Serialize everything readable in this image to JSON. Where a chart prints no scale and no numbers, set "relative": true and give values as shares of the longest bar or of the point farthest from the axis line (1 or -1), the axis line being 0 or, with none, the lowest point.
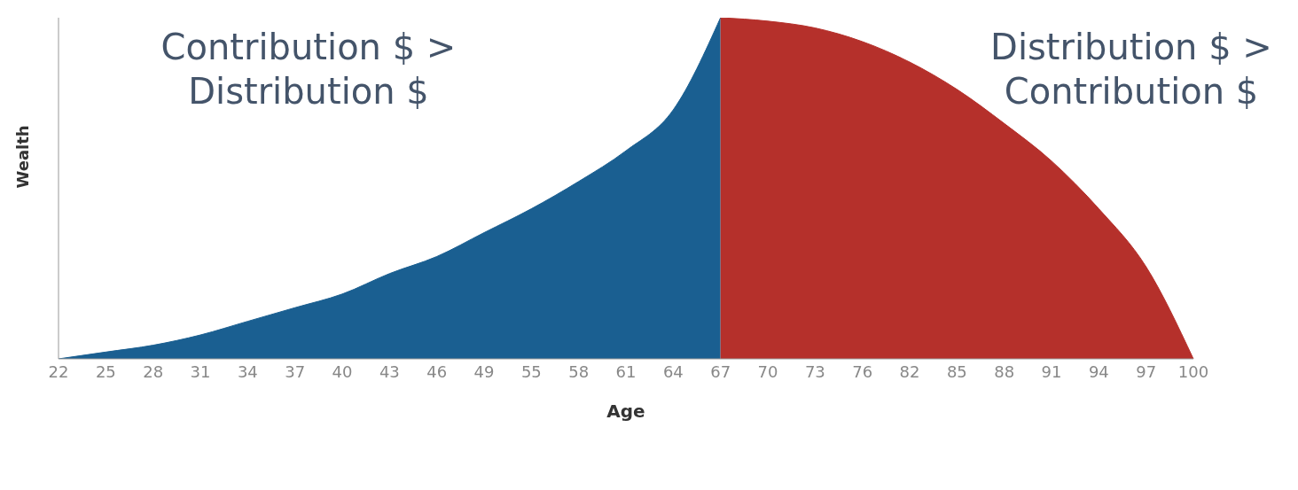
{
  "chart_data": {
    "type": "area",
    "relative": true,
    "xlabel": "Age",
    "ylabel": "Wealth",
    "categories": [
      "22",
      "25",
      "28",
      "31",
      "34",
      "37",
      "40",
      "43",
      "46",
      "49",
      "55",
      "58",
      "61",
      "64",
      "67",
      "70",
      "73",
      "76",
      "82",
      "85",
      "88",
      "91",
      "94",
      "97",
      "100"
    ],
    "series": [
      {
        "color": "#1a5f91",
        "values": [
          0,
          0.02,
          0.04,
          0.07,
          0.11,
          0.15,
          0.19,
          0.25,
          0.3,
          0.37,
          0.44,
          0.52,
          0.61,
          0.73,
          1,
          null,
          null,
          null,
          null,
          null,
          null,
          null,
          null,
          null,
          null
        ]
      },
      {
        "color": "#b5302b",
        "values": [
          null,
          null,
          null,
          null,
          null,
          null,
          null,
          null,
          null,
          null,
          null,
          null,
          null,
          null,
          1,
          0.99,
          0.97,
          0.93,
          0.87,
          0.79,
          0.69,
          0.58,
          0.44,
          0.27,
          0
        ]
      }
    ],
    "annotations": [
      "Contribution $ >\nDistribution $",
      "Distribution $ >\nContribution $"
    ],
    "grid": false,
    "legend": false
  }
}
